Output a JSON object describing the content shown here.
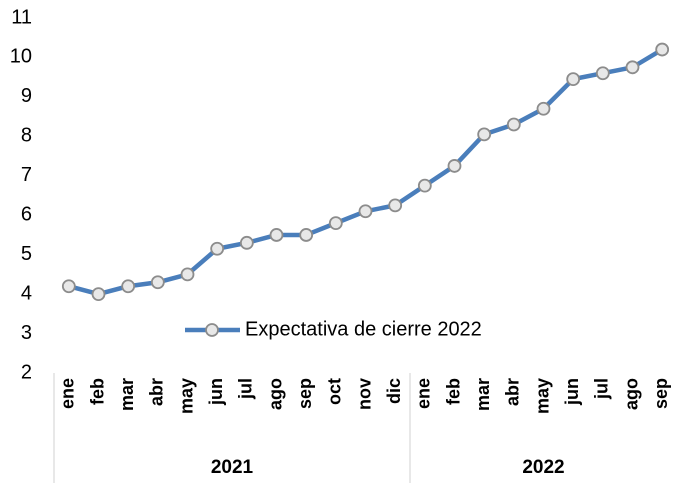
{
  "chart_data": {
    "type": "line",
    "categories": [
      "ene",
      "feb",
      "mar",
      "abr",
      "may",
      "jun",
      "jul",
      "ago",
      "sep",
      "oct",
      "nov",
      "dic",
      "ene",
      "feb",
      "mar",
      "abr",
      "may",
      "jun",
      "jul",
      "ago",
      "sep"
    ],
    "groups": [
      {
        "label": "2021",
        "span": 12
      },
      {
        "label": "2022",
        "span": 9
      }
    ],
    "series": [
      {
        "name": "Expectativa de cierre 2022",
        "color": "#4a7ebb",
        "values": [
          4.2,
          4.0,
          4.2,
          4.3,
          4.5,
          5.15,
          5.3,
          5.5,
          5.5,
          5.8,
          6.1,
          6.25,
          6.75,
          7.25,
          8.05,
          8.3,
          8.7,
          9.45,
          9.6,
          9.75,
          10.2
        ]
      }
    ],
    "ylim": [
      2,
      11
    ],
    "yticks": [
      2,
      3,
      4,
      5,
      6,
      7,
      8,
      9,
      10,
      11
    ],
    "grid": false,
    "legend": "center"
  }
}
